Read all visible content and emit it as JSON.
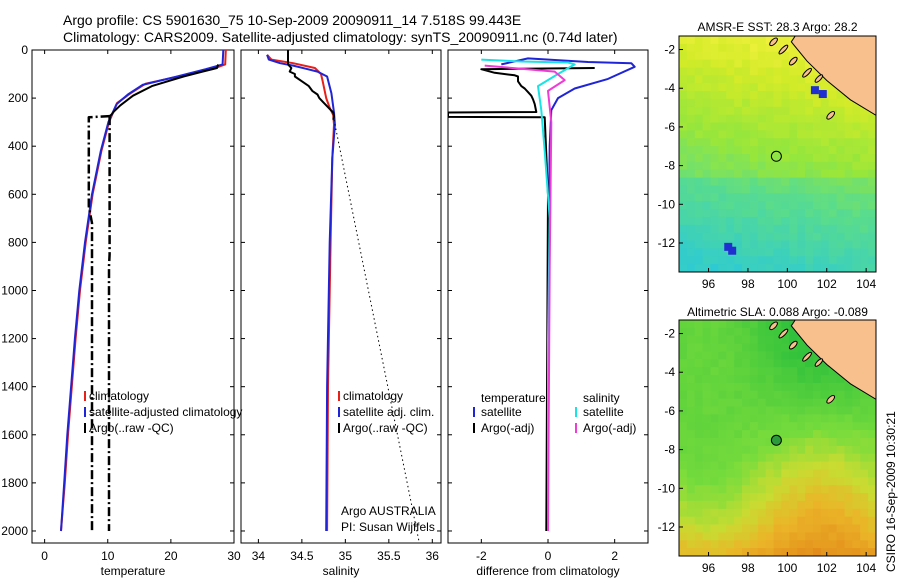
{
  "figure": {
    "title_line1": "Argo profile: CS 5901630_75 10-Sep-2009 20090911_14 7.518S 99.443E",
    "title_line2": "Climatology: CARS2009. Satellite-adjusted climatology: synTS_20090911.nc (0.74d later)",
    "footer_vertical": "CSIRO 16-Sep-2009 10:30:21"
  },
  "colors": {
    "climatology": "#e8201a",
    "satellite": "#1f25d6",
    "argo": "#000000",
    "sat_salinity": "#19e3e3",
    "argo_adj_salinity": "#f03cd6",
    "land": "#f7c08c"
  },
  "chart_data": [
    {
      "id": "temperature",
      "type": "line",
      "xlabel": "temperature",
      "ylabel": "",
      "xlim": [
        -2,
        30
      ],
      "ylim": [
        2050,
        0
      ],
      "xticks": [
        0,
        10,
        20,
        30
      ],
      "yticks": [
        0,
        200,
        400,
        600,
        800,
        1000,
        1200,
        1400,
        1600,
        1800,
        2000
      ],
      "legend": [
        "climatology",
        "satellite-adjusted climatology",
        "Argo(..raw -QC)"
      ],
      "series": [
        {
          "name": "climatology",
          "color": "#e8201a",
          "style": "solid",
          "x": [
            28.7,
            28.6,
            26.5,
            22,
            16,
            13.6,
            11.5,
            10.2,
            9,
            7.6,
            6.5,
            5.6,
            4.9,
            4.3,
            3.7,
            3.2,
            2.6
          ],
          "y": [
            0,
            60,
            80,
            105,
            140,
            180,
            220,
            300,
            420,
            600,
            800,
            1000,
            1200,
            1400,
            1600,
            1800,
            2000
          ]
        },
        {
          "name": "satellite-adjusted climatology",
          "color": "#1f25d6",
          "style": "solid",
          "x": [
            28.3,
            28.2,
            25.5,
            21,
            15.5,
            13.2,
            11.4,
            10.1,
            8.9,
            7.5,
            6.4,
            5.5,
            4.8,
            4.2,
            3.6,
            3.1,
            2.6
          ],
          "y": [
            0,
            60,
            80,
            110,
            145,
            185,
            225,
            300,
            420,
            600,
            800,
            1000,
            1200,
            1400,
            1600,
            1800,
            2000
          ]
        },
        {
          "name": "Argo(..raw -QC)",
          "color": "#000000",
          "style": "solid",
          "x": [
            27.5,
            27.3,
            25,
            22,
            17,
            14,
            12,
            11,
            10.6,
            10.3
          ],
          "y": [
            60,
            75,
            90,
            110,
            150,
            190,
            230,
            255,
            268,
            275
          ]
        },
        {
          "name": "",
          "color": "#000000",
          "style": "dashdot",
          "x": [
            10.3,
            7,
            7,
            7.5,
            7.5
          ],
          "y": [
            275,
            280,
            650,
            720,
            2000
          ]
        },
        {
          "name": "",
          "color": "#000000",
          "style": "dashdot",
          "x": [
            10.3,
            10.3,
            10.2,
            10.2
          ],
          "y": [
            275,
            850,
            900,
            2000
          ]
        }
      ],
      "annotations": []
    },
    {
      "id": "salinity",
      "type": "line",
      "xlabel": "salinity",
      "ylabel": "",
      "xlim": [
        33.8,
        36.1
      ],
      "ylim": [
        2050,
        0
      ],
      "xticks": [
        34,
        34.5,
        35,
        35.5,
        36
      ],
      "xtick_labels": [
        "34",
        "34.5",
        "35",
        "35.5",
        "36"
      ],
      "yticks": [
        0,
        200,
        400,
        600,
        800,
        1000,
        1200,
        1400,
        1600,
        1800,
        2000
      ],
      "legend": [
        "climatology",
        "satellite adj. clim.",
        "Argo(..raw -QC)"
      ],
      "series": [
        {
          "name": "climatology",
          "color": "#e8201a",
          "style": "solid",
          "x": [
            34.1,
            34.15,
            34.4,
            34.65,
            34.72,
            34.74,
            34.78,
            34.82,
            34.86,
            34.87,
            34.85,
            34.83,
            34.8,
            34.79
          ],
          "y": [
            20,
            40,
            55,
            75,
            100,
            130,
            200,
            240,
            270,
            310,
            450,
            800,
            1400,
            2000
          ]
        },
        {
          "name": "satellite adj. clim.",
          "color": "#1f25d6",
          "style": "solid",
          "x": [
            34.1,
            34.12,
            34.25,
            34.4,
            34.55,
            34.68,
            34.79,
            34.84,
            34.87,
            34.88,
            34.85,
            34.82,
            34.79,
            34.78
          ],
          "y": [
            20,
            40,
            55,
            65,
            78,
            90,
            110,
            180,
            260,
            310,
            450,
            800,
            1400,
            2000
          ]
        },
        {
          "name": "Argo(..raw -QC)",
          "color": "#000000",
          "style": "solid",
          "x": [
            34.34,
            34.34,
            34.38,
            34.36,
            34.42,
            34.42,
            34.5,
            34.58,
            34.62,
            34.68,
            34.7,
            34.74,
            34.78,
            34.82,
            34.86,
            34.87,
            34.86
          ],
          "y": [
            0,
            60,
            75,
            90,
            100,
            110,
            130,
            150,
            170,
            185,
            200,
            215,
            230,
            245,
            260,
            275,
            290
          ]
        },
        {
          "name": "",
          "color": "#000000",
          "style": "dotted",
          "x": [
            34.87,
            35.85
          ],
          "y": [
            290,
            2050
          ]
        }
      ],
      "annotations": [
        "Argo AUSTRALIA",
        "PI: Susan Wijffels"
      ]
    },
    {
      "id": "difference",
      "type": "line",
      "xlabel": "difference from climatology",
      "ylabel": "",
      "xlim": [
        -3,
        3
      ],
      "ylim": [
        2050,
        0
      ],
      "xticks": [
        -2,
        0,
        2
      ],
      "yticks": [
        0,
        200,
        400,
        600,
        800,
        1000,
        1200,
        1400,
        1600,
        1800,
        2000
      ],
      "legend_left_title": "temperature",
      "legend_right_title": "salinity",
      "legend": [
        "satellite",
        "Argo(-adj)",
        "satellite",
        "Argo(-adj)"
      ],
      "series": [
        {
          "name": "satellite",
          "color": "#1f25d6",
          "style": "solid",
          "x": [
            -1.4,
            -0.6,
            1.2,
            2.5,
            2.6,
            1.8,
            0.8,
            0.3,
            0.1,
            0.05,
            0.0,
            0.0
          ],
          "y": [
            60,
            35,
            50,
            55,
            70,
            120,
            160,
            200,
            250,
            400,
            1000,
            2000
          ]
        },
        {
          "name": "Argo(-adj)",
          "color": "#000000",
          "style": "solid",
          "x": [
            1.4,
            -2.0,
            -1.6,
            -1.0,
            -0.9,
            -0.9,
            -0.8,
            -0.7,
            -0.6,
            -0.5,
            -0.45,
            -0.4,
            -0.35,
            -3.0,
            -3.0,
            -0.1,
            0.0,
            -0.05
          ],
          "y": [
            75,
            80,
            95,
            105,
            110,
            130,
            150,
            160,
            175,
            190,
            205,
            225,
            258,
            260,
            278,
            280,
            600,
            2000
          ]
        },
        {
          "name": "satellite",
          "color": "#19e3e3",
          "style": "solid",
          "x": [
            -2.0,
            -0.8,
            0.6,
            0.8,
            0.3,
            -0.3,
            -0.2,
            -0.1,
            0.05,
            0.0,
            0.0
          ],
          "y": [
            40,
            48,
            52,
            60,
            100,
            150,
            250,
            420,
            700,
            1200,
            2000
          ]
        },
        {
          "name": "Argo(-adj)",
          "color": "#f03cd6",
          "style": "solid",
          "x": [
            -1.9,
            0.2,
            0.5,
            0.0,
            0.1,
            0.05,
            0.0
          ],
          "y": [
            65,
            90,
            125,
            170,
            300,
            900,
            2000
          ]
        }
      ],
      "annotations": []
    }
  ],
  "maps": [
    {
      "title": "AMSR-E SST: 28.3 Argo: 28.2",
      "lon_ticks": [
        96,
        98,
        100,
        102,
        104
      ],
      "lat_ticks": [
        -2,
        -4,
        -6,
        -8,
        -10,
        -12
      ],
      "lon_range": [
        94.5,
        104.5
      ],
      "lat_range": [
        -13.5,
        -1.3
      ],
      "colormap": "sst",
      "argo_marker": {
        "lon": 99.443,
        "lat": -7.518,
        "filled": false
      }
    },
    {
      "title": "Altimetric SLA: 0.088 Argo: -0.089",
      "lon_ticks": [
        96,
        98,
        100,
        102,
        104
      ],
      "lat_ticks": [
        -2,
        -4,
        -6,
        -8,
        -10,
        -12
      ],
      "lon_range": [
        94.5,
        104.5
      ],
      "lat_range": [
        -13.5,
        -1.3
      ],
      "colormap": "sla",
      "argo_marker": {
        "lon": 99.443,
        "lat": -7.518,
        "filled": true
      }
    }
  ]
}
